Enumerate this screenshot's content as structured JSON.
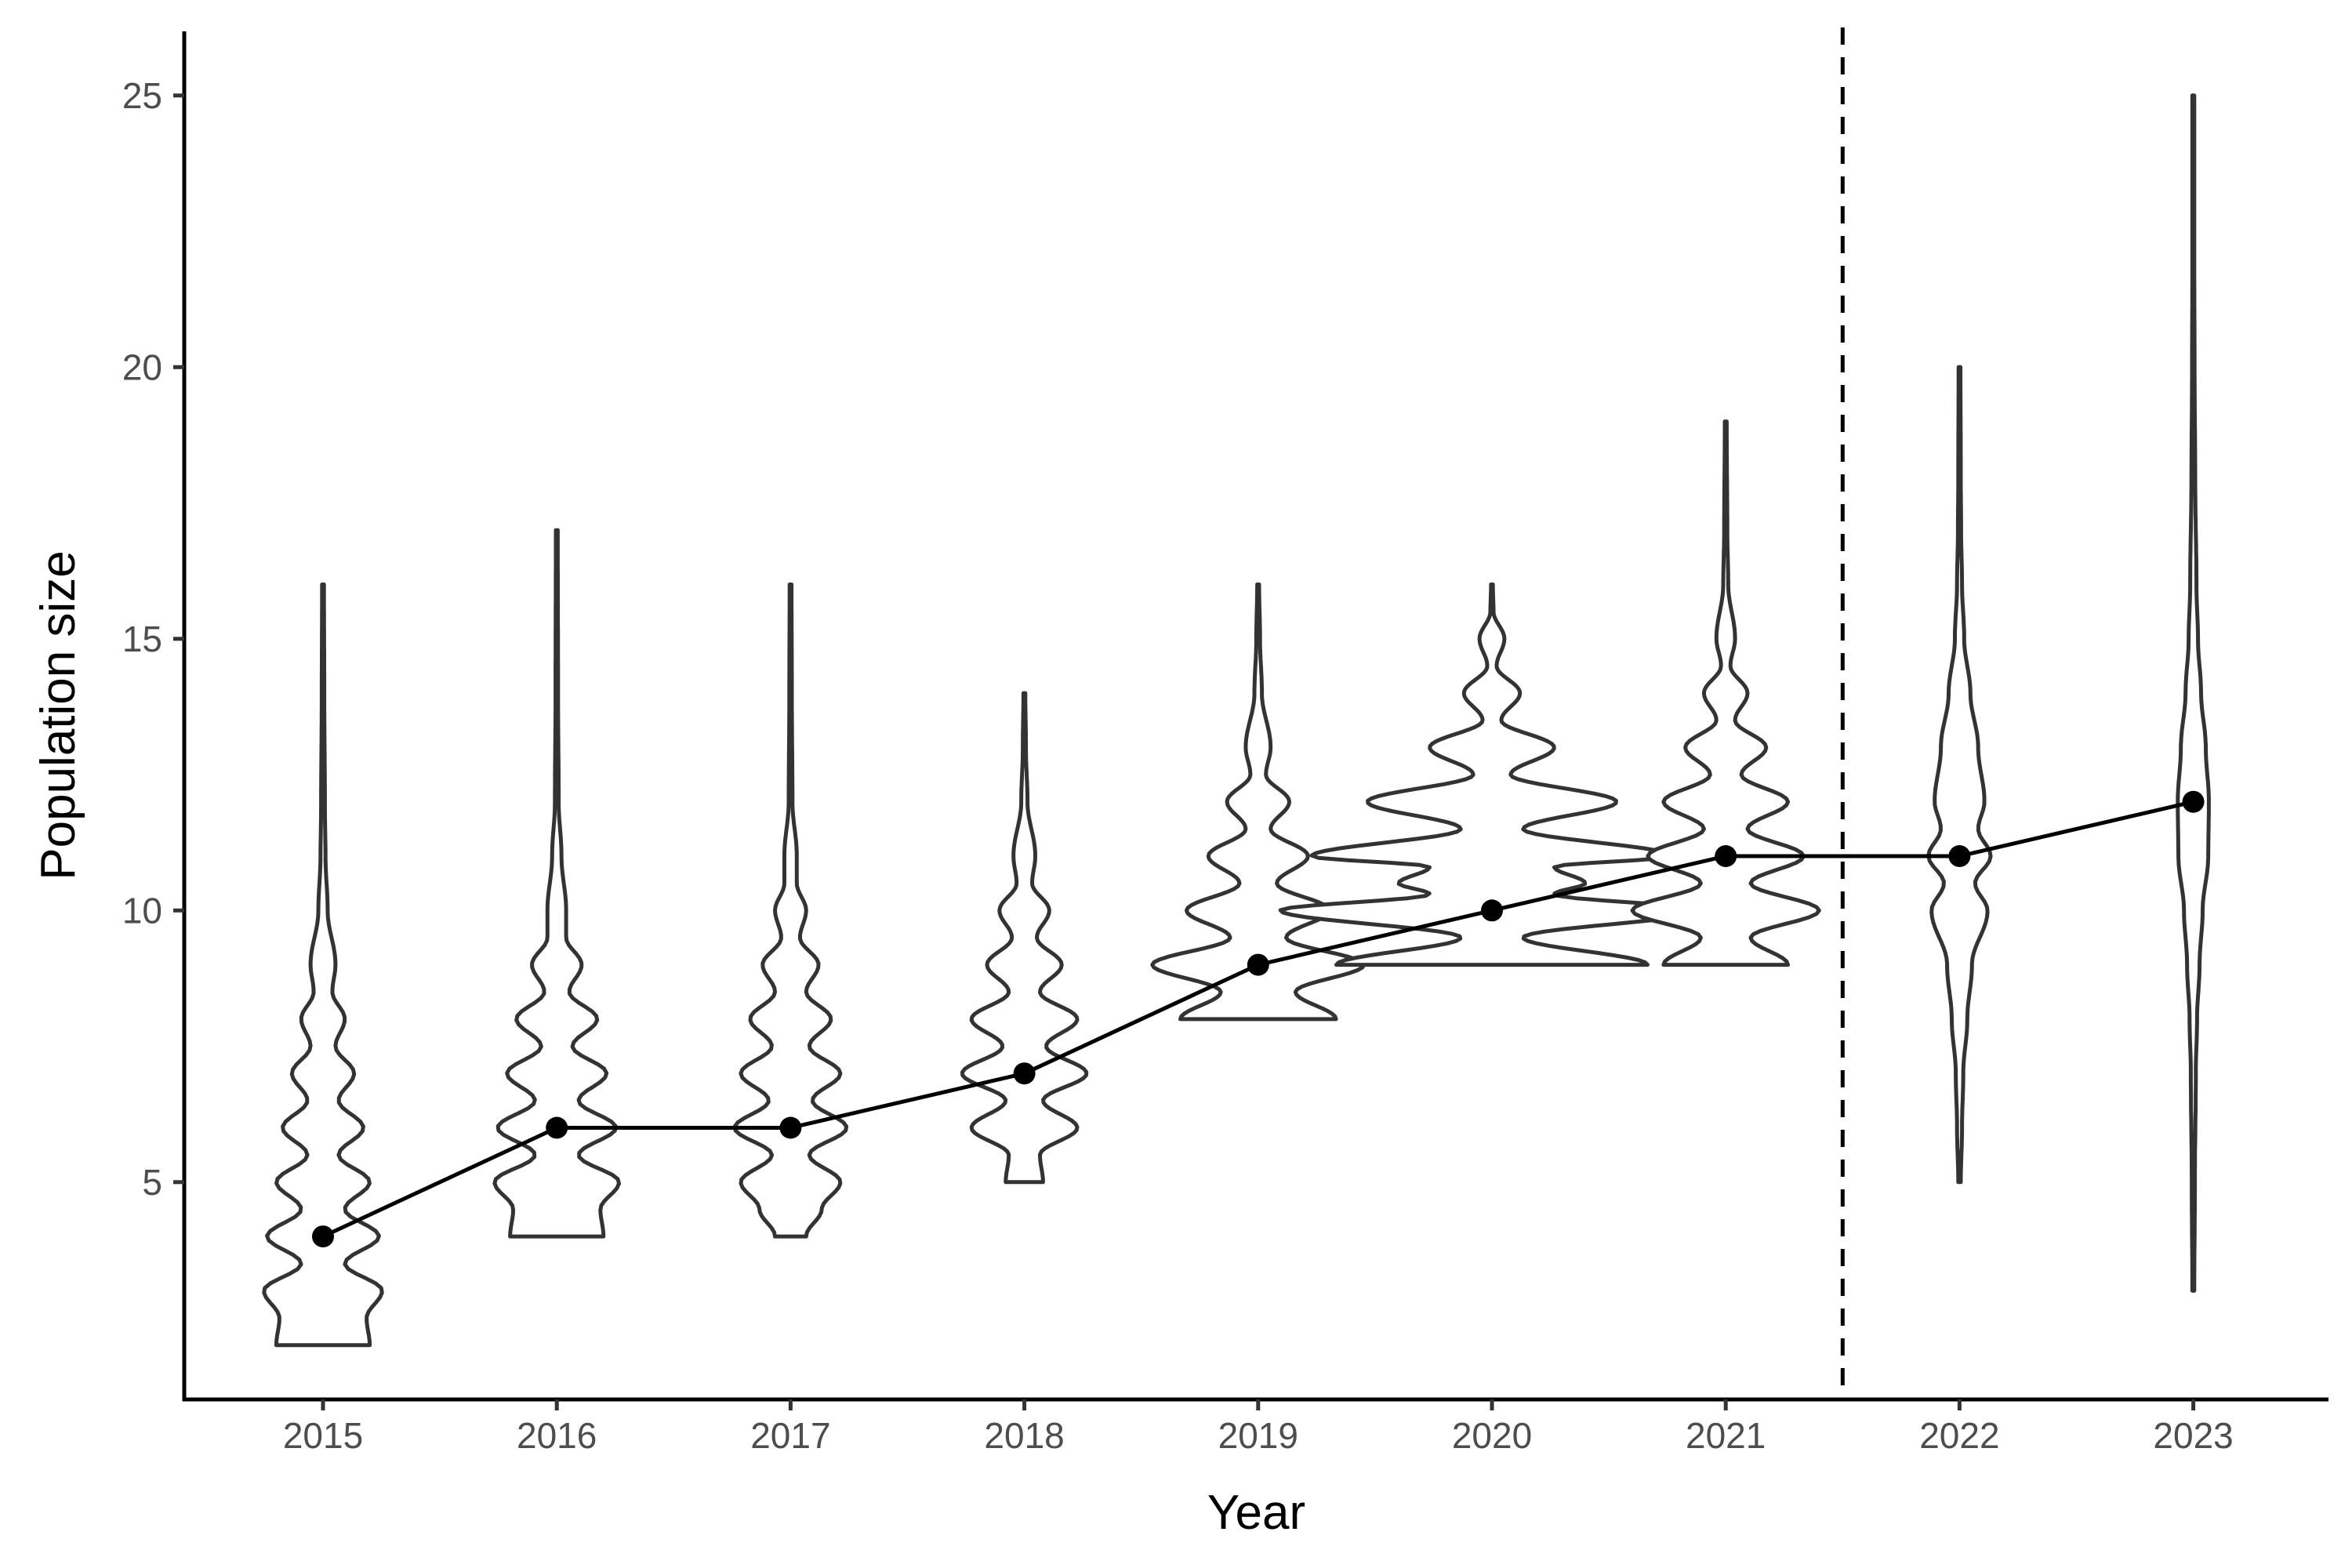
{
  "chart_data": {
    "type": "violin",
    "xlabel": "Year",
    "ylabel": "Population size",
    "ylim": [
      1,
      26
    ],
    "yticks": [
      5,
      10,
      15,
      20,
      25
    ],
    "categories": [
      "2015",
      "2016",
      "2017",
      "2018",
      "2019",
      "2020",
      "2021",
      "2022",
      "2023"
    ],
    "medians": [
      4,
      6,
      6,
      7,
      9,
      10,
      11,
      11,
      12
    ],
    "distributions": [
      {
        "year": "2015",
        "min": 2,
        "max": 16,
        "profile": [
          [
            2,
            0.15
          ],
          [
            2.5,
            0.14
          ],
          [
            3,
            0.19
          ],
          [
            3.5,
            0.07
          ],
          [
            4,
            0.18
          ],
          [
            4.5,
            0.07
          ],
          [
            5,
            0.15
          ],
          [
            5.5,
            0.05
          ],
          [
            6,
            0.13
          ],
          [
            6.5,
            0.05
          ],
          [
            7,
            0.1
          ],
          [
            7.5,
            0.04
          ],
          [
            8,
            0.07
          ],
          [
            8.5,
            0.03
          ],
          [
            9,
            0.04
          ],
          [
            10,
            0.015
          ],
          [
            11,
            0.008
          ],
          [
            12,
            0.006
          ],
          [
            14,
            0.004
          ],
          [
            16,
            0.003
          ]
        ]
      },
      {
        "year": "2016",
        "min": 4,
        "max": 17,
        "profile": [
          [
            4,
            0.15
          ],
          [
            4.5,
            0.14
          ],
          [
            5,
            0.2
          ],
          [
            5.5,
            0.07
          ],
          [
            6,
            0.19
          ],
          [
            6.5,
            0.07
          ],
          [
            7,
            0.16
          ],
          [
            7.5,
            0.05
          ],
          [
            8,
            0.13
          ],
          [
            8.5,
            0.04
          ],
          [
            9,
            0.08
          ],
          [
            9.5,
            0.03
          ],
          [
            10,
            0.03
          ],
          [
            11,
            0.015
          ],
          [
            12,
            0.006
          ],
          [
            14,
            0.004
          ],
          [
            17,
            0.003
          ]
        ]
      },
      {
        "year": "2017",
        "min": 4,
        "max": 16,
        "profile": [
          [
            4,
            0.05
          ],
          [
            4.5,
            0.1
          ],
          [
            5,
            0.16
          ],
          [
            5.5,
            0.06
          ],
          [
            6,
            0.18
          ],
          [
            6.5,
            0.07
          ],
          [
            7,
            0.16
          ],
          [
            7.5,
            0.06
          ],
          [
            8,
            0.13
          ],
          [
            8.5,
            0.05
          ],
          [
            9,
            0.09
          ],
          [
            9.5,
            0.03
          ],
          [
            10,
            0.05
          ],
          [
            10.5,
            0.02
          ],
          [
            11,
            0.02
          ],
          [
            12,
            0.006
          ],
          [
            14,
            0.004
          ],
          [
            16,
            0.003
          ]
        ]
      },
      {
        "year": "2018",
        "min": 5,
        "max": 14,
        "profile": [
          [
            5,
            0.06
          ],
          [
            5.5,
            0.05
          ],
          [
            6,
            0.17
          ],
          [
            6.5,
            0.06
          ],
          [
            7,
            0.2
          ],
          [
            7.5,
            0.07
          ],
          [
            8,
            0.17
          ],
          [
            8.5,
            0.05
          ],
          [
            9,
            0.12
          ],
          [
            9.5,
            0.04
          ],
          [
            10,
            0.08
          ],
          [
            10.5,
            0.025
          ],
          [
            11,
            0.035
          ],
          [
            12,
            0.01
          ],
          [
            13,
            0.005
          ],
          [
            14,
            0.003
          ]
        ]
      },
      {
        "year": "2019",
        "min": 8,
        "max": 16,
        "profile": [
          [
            8,
            0.25
          ],
          [
            8.5,
            0.12
          ],
          [
            9,
            0.34
          ],
          [
            9.5,
            0.09
          ],
          [
            10,
            0.23
          ],
          [
            10.5,
            0.06
          ],
          [
            11,
            0.16
          ],
          [
            11.5,
            0.04
          ],
          [
            12,
            0.1
          ],
          [
            12.5,
            0.025
          ],
          [
            13,
            0.04
          ],
          [
            14,
            0.012
          ],
          [
            15,
            0.006
          ],
          [
            16,
            0.003
          ]
        ]
      },
      {
        "year": "2020",
        "min": 9,
        "max": 16,
        "profile": [
          [
            9,
            0.5
          ],
          [
            9.5,
            0.1
          ],
          [
            10,
            0.68
          ],
          [
            10.3,
            0.2
          ],
          [
            10.5,
            0.3
          ],
          [
            10.8,
            0.2
          ],
          [
            11,
            0.58
          ],
          [
            11.5,
            0.1
          ],
          [
            12,
            0.4
          ],
          [
            12.5,
            0.06
          ],
          [
            13,
            0.2
          ],
          [
            13.5,
            0.03
          ],
          [
            14,
            0.09
          ],
          [
            14.5,
            0.015
          ],
          [
            15,
            0.04
          ],
          [
            15.5,
            0.005
          ],
          [
            16,
            0.003
          ]
        ]
      },
      {
        "year": "2021",
        "min": 9,
        "max": 19,
        "profile": [
          [
            9,
            0.2
          ],
          [
            9.5,
            0.08
          ],
          [
            10,
            0.3
          ],
          [
            10.5,
            0.08
          ],
          [
            11,
            0.25
          ],
          [
            11.5,
            0.07
          ],
          [
            12,
            0.2
          ],
          [
            12.5,
            0.05
          ],
          [
            13,
            0.13
          ],
          [
            13.5,
            0.03
          ],
          [
            14,
            0.07
          ],
          [
            14.5,
            0.015
          ],
          [
            15,
            0.03
          ],
          [
            16,
            0.008
          ],
          [
            17,
            0.005
          ],
          [
            19,
            0.003
          ]
        ]
      },
      {
        "year": "2022",
        "min": 5,
        "max": 20,
        "profile": [
          [
            5,
            0.004
          ],
          [
            6,
            0.008
          ],
          [
            7,
            0.012
          ],
          [
            8,
            0.025
          ],
          [
            9,
            0.04
          ],
          [
            10,
            0.09
          ],
          [
            10.5,
            0.05
          ],
          [
            11,
            0.1
          ],
          [
            11.5,
            0.06
          ],
          [
            12,
            0.08
          ],
          [
            13,
            0.06
          ],
          [
            14,
            0.035
          ],
          [
            15,
            0.015
          ],
          [
            16,
            0.008
          ],
          [
            17,
            0.005
          ],
          [
            18,
            0.004
          ],
          [
            20,
            0.003
          ]
        ]
      },
      {
        "year": "2023",
        "min": 3,
        "max": 25,
        "profile": [
          [
            3,
            0.003
          ],
          [
            5,
            0.005
          ],
          [
            7,
            0.008
          ],
          [
            8,
            0.012
          ],
          [
            9,
            0.02
          ],
          [
            10,
            0.03
          ],
          [
            11,
            0.048
          ],
          [
            12,
            0.05
          ],
          [
            13,
            0.04
          ],
          [
            14,
            0.025
          ],
          [
            15,
            0.015
          ],
          [
            16,
            0.01
          ],
          [
            18,
            0.006
          ],
          [
            20,
            0.004
          ],
          [
            22,
            0.003
          ],
          [
            25,
            0.003
          ]
        ]
      }
    ],
    "reference_line": {
      "position_between": [
        "2021",
        "2022"
      ],
      "style": "dashed"
    },
    "grid": false,
    "legend": "none",
    "colors": {
      "violin_outline": "#333333",
      "line": "#000000",
      "points": "#000000",
      "axis": "#000000",
      "tick_text": "#4d4d4d"
    }
  }
}
